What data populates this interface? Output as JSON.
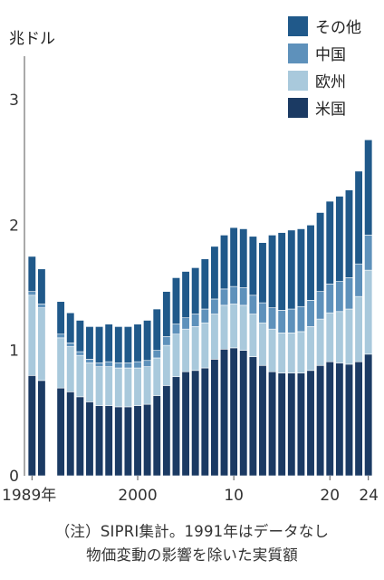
{
  "chart_data": {
    "type": "bar",
    "stacked": true,
    "unit_label": "兆ドル",
    "years": [
      1989,
      1990,
      1991,
      1992,
      1993,
      1994,
      1995,
      1996,
      1997,
      1998,
      1999,
      2000,
      2001,
      2002,
      2003,
      2004,
      2005,
      2006,
      2007,
      2008,
      2009,
      2010,
      2011,
      2012,
      2013,
      2014,
      2015,
      2016,
      2017,
      2018,
      2019,
      2020,
      2021,
      2022,
      2023,
      2024
    ],
    "x_tick_labels": [
      {
        "year": 1989,
        "label": "1989年"
      },
      {
        "year": 2000,
        "label": "2000"
      },
      {
        "year": 2010,
        "label": "10"
      },
      {
        "year": 2020,
        "label": "20"
      },
      {
        "year": 2024,
        "label": "24"
      }
    ],
    "ylim": [
      0,
      3.0
    ],
    "y_ticks": [
      {
        "value": 0,
        "label": "0"
      },
      {
        "value": 1,
        "label": "1"
      },
      {
        "value": 2,
        "label": "2"
      },
      {
        "value": 3,
        "label": "3"
      }
    ],
    "legend_placement": "top-right",
    "series": [
      {
        "name": "米国",
        "color": "#1b3a63",
        "values": [
          0.8,
          0.76,
          null,
          0.7,
          0.67,
          0.63,
          0.59,
          0.56,
          0.56,
          0.55,
          0.55,
          0.56,
          0.57,
          0.64,
          0.72,
          0.79,
          0.83,
          0.84,
          0.86,
          0.93,
          1.01,
          1.02,
          1.0,
          0.95,
          0.88,
          0.83,
          0.82,
          0.82,
          0.82,
          0.84,
          0.88,
          0.91,
          0.9,
          0.89,
          0.91,
          0.97
        ]
      },
      {
        "name": "欧州",
        "color": "#a9c9dc",
        "values": [
          0.64,
          0.58,
          null,
          0.4,
          0.36,
          0.33,
          0.31,
          0.31,
          0.31,
          0.31,
          0.31,
          0.3,
          0.3,
          0.3,
          0.32,
          0.34,
          0.34,
          0.35,
          0.36,
          0.36,
          0.35,
          0.35,
          0.36,
          0.34,
          0.34,
          0.34,
          0.32,
          0.32,
          0.33,
          0.35,
          0.37,
          0.39,
          0.41,
          0.44,
          0.52,
          0.67
        ]
      },
      {
        "name": "中国",
        "color": "#5e91bb",
        "values": [
          0.03,
          0.03,
          null,
          0.03,
          0.03,
          0.03,
          0.03,
          0.03,
          0.04,
          0.04,
          0.04,
          0.05,
          0.05,
          0.06,
          0.07,
          0.08,
          0.09,
          0.1,
          0.11,
          0.12,
          0.13,
          0.14,
          0.14,
          0.15,
          0.16,
          0.17,
          0.18,
          0.19,
          0.2,
          0.21,
          0.22,
          0.23,
          0.24,
          0.25,
          0.26,
          0.28
        ]
      },
      {
        "name": "その他",
        "color": "#20598a",
        "values": [
          0.28,
          0.28,
          null,
          0.26,
          0.24,
          0.25,
          0.26,
          0.29,
          0.3,
          0.29,
          0.29,
          0.3,
          0.32,
          0.33,
          0.36,
          0.37,
          0.37,
          0.37,
          0.4,
          0.42,
          0.43,
          0.47,
          0.47,
          0.47,
          0.48,
          0.58,
          0.62,
          0.63,
          0.62,
          0.6,
          0.63,
          0.66,
          0.68,
          0.7,
          0.74,
          0.76
        ]
      }
    ]
  },
  "notes": {
    "line1": "（注）SIPRI集計。1991年はデータなし",
    "line2": "物価変動の影響を除いた実質額"
  }
}
